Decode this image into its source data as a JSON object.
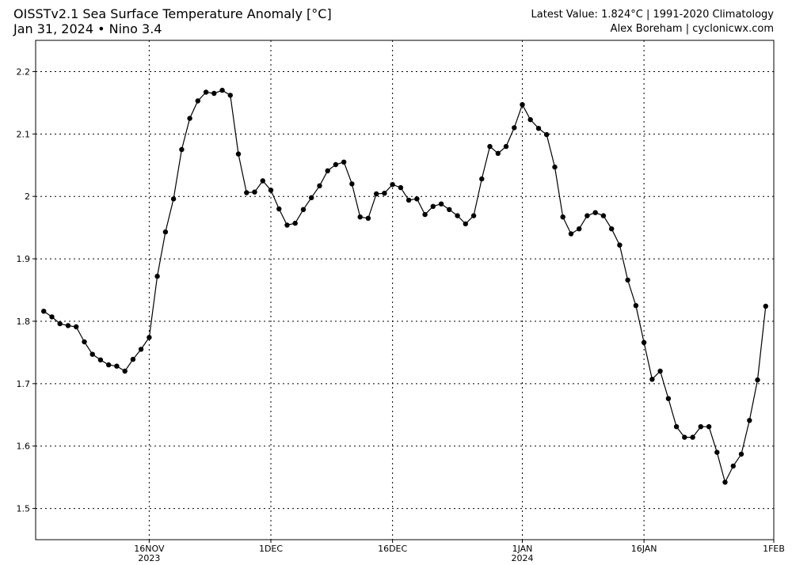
{
  "header": {
    "title": "OISSTv2.1 Sea Surface Temperature Anomaly [°C]",
    "subtitle": "Jan 31, 2024 • Nino 3.4",
    "right_line1": "Latest Value: 1.824°C | 1991-2020 Climatology",
    "right_line2": "Alex Boreham | cyclonicwx.com"
  },
  "chart_data": {
    "type": "line",
    "title": "OISSTv2.1 Sea Surface Temperature Anomaly [°C]",
    "subtitle": "Jan 31, 2024 • Nino 3.4",
    "xlabel": "",
    "ylabel": "",
    "x_start": "2023-11-03",
    "x_end": "2024-01-31",
    "xlim": [
      "2023-11-02",
      "2024-02-01"
    ],
    "ylim": [
      1.45,
      2.25
    ],
    "grid": true,
    "line_color": "#000000",
    "marker_color": "#000000",
    "x_ticks": [
      {
        "date": "2023-11-16",
        "label": "16NOV",
        "sublabel": "2023"
      },
      {
        "date": "2023-12-01",
        "label": "1DEC",
        "sublabel": ""
      },
      {
        "date": "2023-12-16",
        "label": "16DEC",
        "sublabel": ""
      },
      {
        "date": "2024-01-01",
        "label": "1JAN",
        "sublabel": "2024"
      },
      {
        "date": "2024-01-16",
        "label": "16JAN",
        "sublabel": ""
      },
      {
        "date": "2024-02-01",
        "label": "1FEB",
        "sublabel": ""
      }
    ],
    "y_ticks": [
      {
        "value": 1.5,
        "label": "1.5"
      },
      {
        "value": 1.6,
        "label": "1.6"
      },
      {
        "value": 1.7,
        "label": "1.7"
      },
      {
        "value": 1.8,
        "label": "1.8"
      },
      {
        "value": 1.9,
        "label": "1.9"
      },
      {
        "value": 2.0,
        "label": "2"
      },
      {
        "value": 2.1,
        "label": "2.1"
      },
      {
        "value": 2.2,
        "label": "2.2"
      }
    ],
    "series": [
      {
        "values": [
          1.816,
          1.807,
          1.796,
          1.793,
          1.791,
          1.767,
          1.747,
          1.738,
          1.73,
          1.728,
          1.72,
          1.739,
          1.755,
          1.774,
          1.872,
          1.943,
          1.996,
          2.075,
          2.125,
          2.153,
          2.167,
          2.165,
          2.17,
          2.162,
          2.068,
          2.006,
          2.007,
          2.025,
          2.01,
          1.98,
          1.954,
          1.957,
          1.979,
          1.998,
          2.017,
          2.041,
          2.051,
          2.055,
          2.02,
          1.967,
          1.965,
          2.004,
          2.005,
          2.019,
          2.014,
          1.994,
          1.996,
          1.971,
          1.984,
          1.988,
          1.979,
          1.969,
          1.956,
          1.969,
          2.028,
          2.08,
          2.069,
          2.08,
          2.11,
          2.147,
          2.123,
          2.109,
          2.099,
          2.047,
          1.967,
          1.94,
          1.948,
          1.969,
          1.974,
          1.969,
          1.948,
          1.922,
          1.866,
          1.825,
          1.766,
          1.707,
          1.72,
          1.676,
          1.631,
          1.614,
          1.614,
          1.631,
          1.631,
          1.59,
          1.542,
          1.568,
          1.587,
          1.641,
          1.706,
          1.824
        ]
      }
    ]
  }
}
